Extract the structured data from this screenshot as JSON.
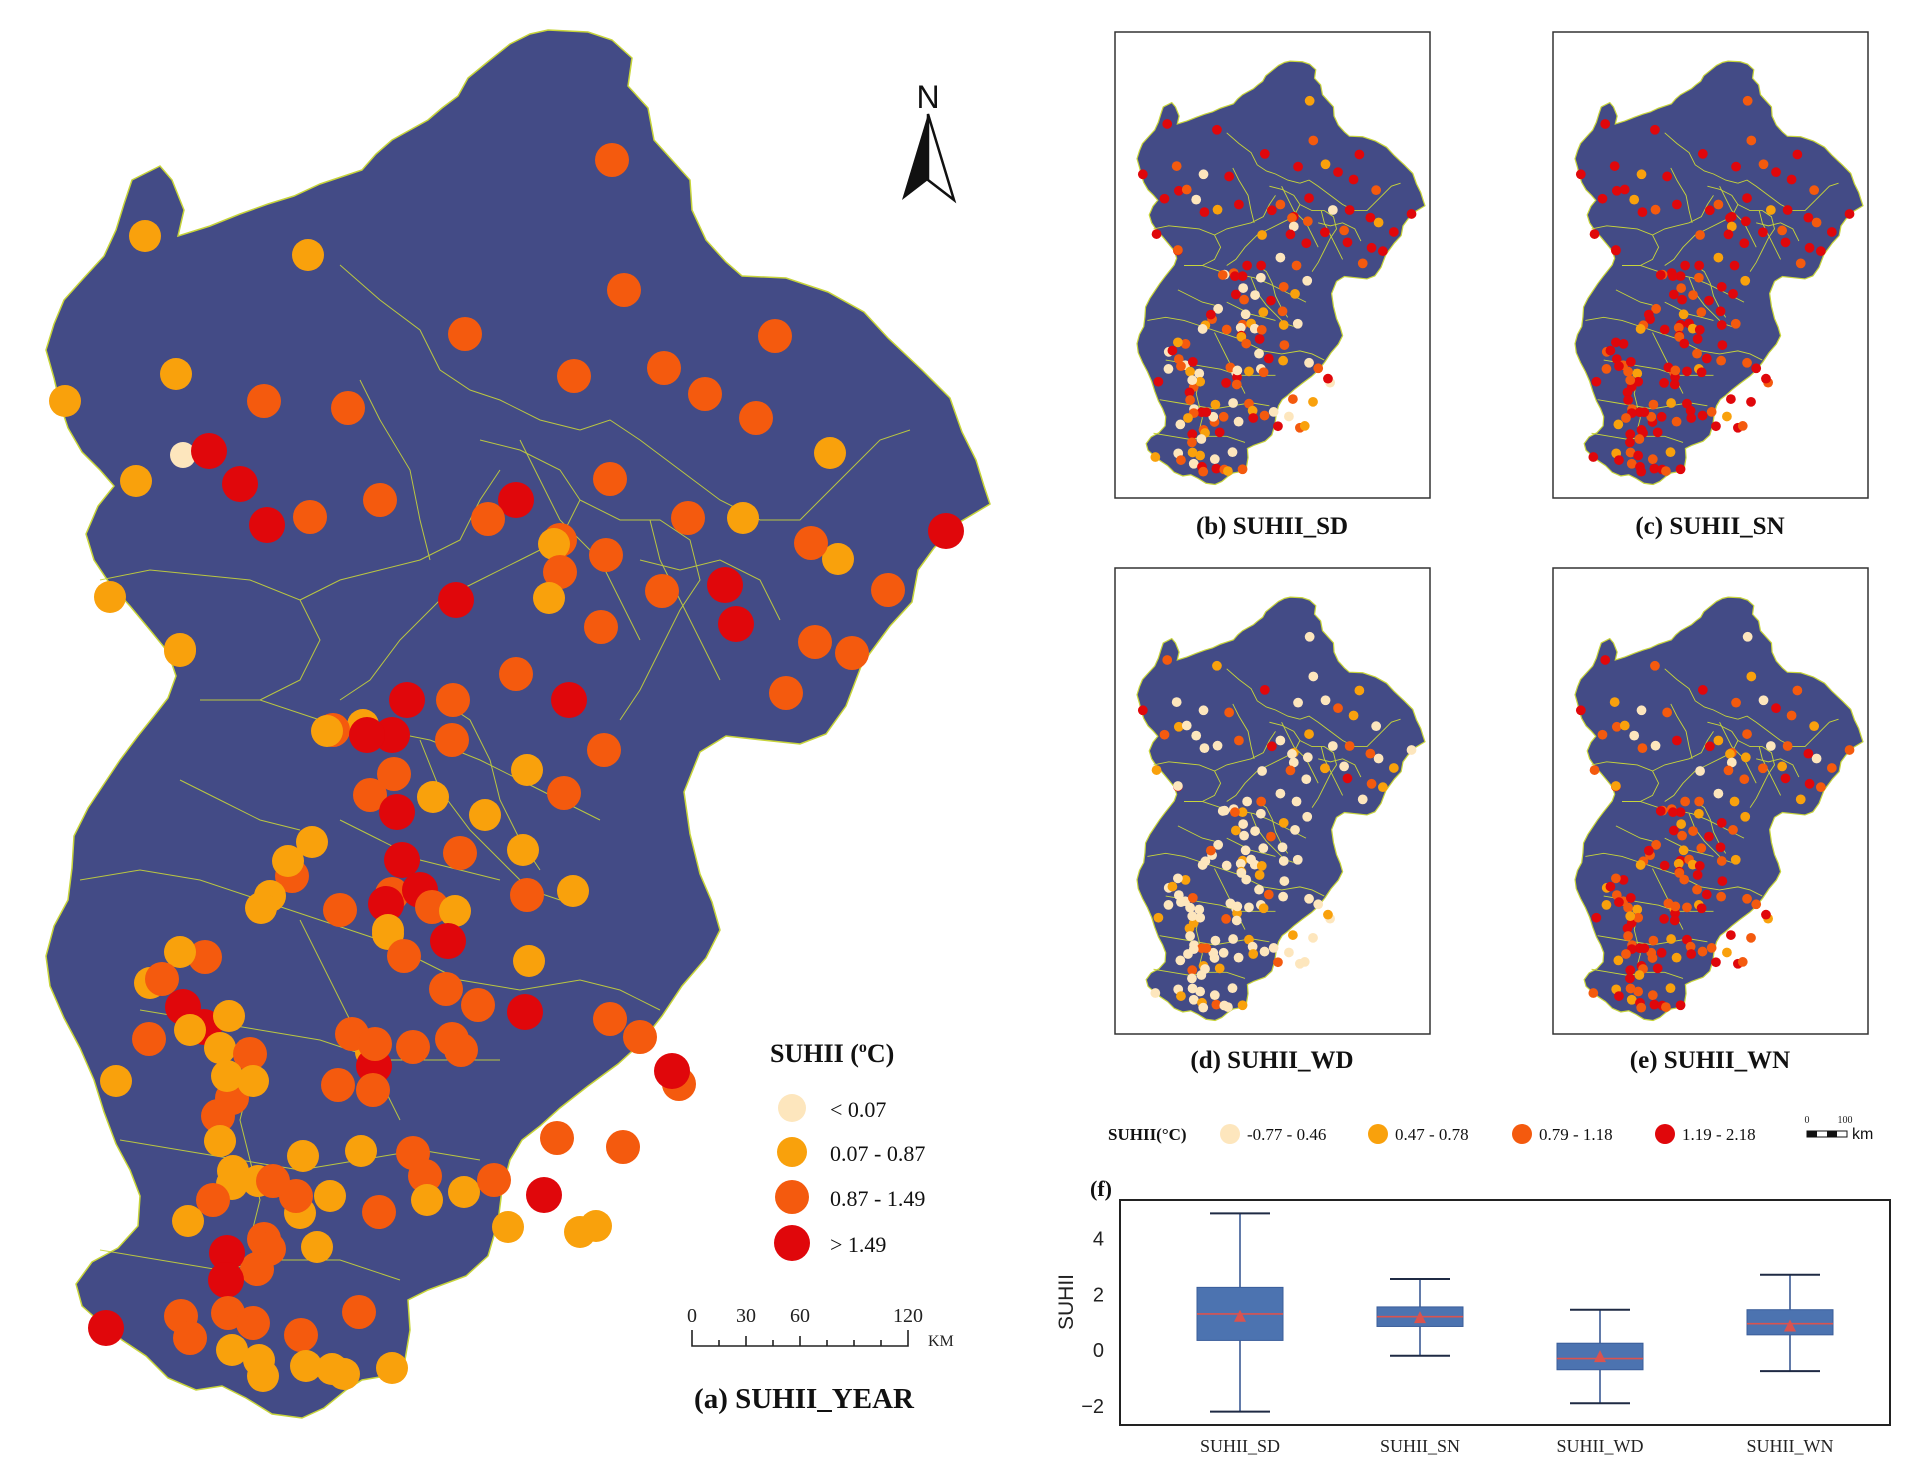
{
  "colors": {
    "land": "#434b86",
    "boundary": "#c7d43a",
    "class1": "#fde6bd",
    "class2": "#f9a10c",
    "class3": "#f45a0e",
    "class4": "#e0070b",
    "box_fill": "#4c73b0",
    "box_median": "#d9534f",
    "box_whisker": "#3b5a94"
  },
  "main_map": {
    "caption": "(a) SUHII_YEAR",
    "north_label": "N",
    "legend": {
      "title": "SUHII (",
      "title_degree": "o",
      "title_unit": "C)",
      "classes": [
        {
          "label": "< 0.07",
          "color": "#fde6bd"
        },
        {
          "label": "0.07 - 0.87",
          "color": "#f9a10c"
        },
        {
          "label": "0.87 - 1.49",
          "color": "#f45a0e"
        },
        {
          "label": "> 1.49",
          "color": "#e0070b"
        }
      ]
    },
    "scale_bar": {
      "ticks": [
        "0",
        "30",
        "60",
        "120"
      ],
      "unit": "KM"
    },
    "station_count": "158"
  },
  "small_maps": [
    {
      "caption": "(b) SUHII_SD",
      "pattern": "sd"
    },
    {
      "caption": "(c) SUHII_SN",
      "pattern": "sn"
    },
    {
      "caption": "(d) SUHII_WD",
      "pattern": "wd"
    },
    {
      "caption": "(e) SUHII_WN",
      "pattern": "wn"
    }
  ],
  "small_legend": {
    "title": "SUHII(°C)",
    "classes": [
      {
        "label": "-0.77 - 0.46",
        "color": "#fde6bd"
      },
      {
        "label": "0.47 - 0.78",
        "color": "#f9a10c"
      },
      {
        "label": "0.79 - 1.18",
        "color": "#f45a0e"
      },
      {
        "label": "1.19 - 2.18",
        "color": "#e0070b"
      }
    ],
    "scale_ticks": [
      "0",
      "100"
    ],
    "scale_unit": "km"
  },
  "chart_data": {
    "type": "box",
    "panel_label": "(f)",
    "ylabel": "SUHII",
    "ylim": [
      -2.5,
      5.2
    ],
    "yticks": [
      "4",
      "2",
      "0",
      "−2"
    ],
    "ytick_values": [
      4,
      2,
      0,
      -2
    ],
    "categories": [
      "SUHII_SD",
      "SUHII_SN",
      "SUHII_WD",
      "SUHII_WN"
    ],
    "boxes": [
      {
        "name": "SUHII_SD",
        "min": -2.2,
        "q1": 0.35,
        "median": 1.3,
        "mean": 1.2,
        "q3": 2.25,
        "max": 4.9
      },
      {
        "name": "SUHII_SN",
        "min": -0.2,
        "q1": 0.85,
        "median": 1.2,
        "mean": 1.15,
        "q3": 1.55,
        "max": 2.55
      },
      {
        "name": "SUHII_WD",
        "min": -1.9,
        "q1": -0.7,
        "median": -0.3,
        "mean": -0.25,
        "q3": 0.25,
        "max": 1.45
      },
      {
        "name": "SUHII_WN",
        "min": -0.75,
        "q1": 0.55,
        "median": 0.95,
        "mean": 0.85,
        "q3": 1.45,
        "max": 2.7
      }
    ]
  }
}
